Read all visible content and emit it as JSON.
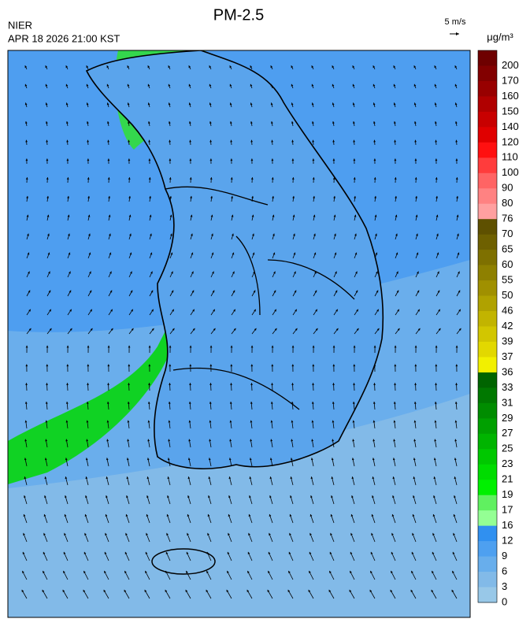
{
  "header": {
    "title": "PM-2.5",
    "agency": "NIER",
    "timestamp": "APR 18 2026 21:00 KST"
  },
  "wind_legend": {
    "label": "5 m/s"
  },
  "colorbar": {
    "unit": "μg/m³",
    "levels": [
      {
        "label": 200,
        "color": "#6e0000"
      },
      {
        "label": 170,
        "color": "#820000"
      },
      {
        "label": 160,
        "color": "#980000"
      },
      {
        "label": 150,
        "color": "#b00000"
      },
      {
        "label": 140,
        "color": "#c80000"
      },
      {
        "label": 120,
        "color": "#e00000"
      },
      {
        "label": 110,
        "color": "#ff1010"
      },
      {
        "label": 100,
        "color": "#ff3c3c"
      },
      {
        "label": 90,
        "color": "#ff6464"
      },
      {
        "label": 80,
        "color": "#ff8282"
      },
      {
        "label": 76,
        "color": "#ffa0a0"
      },
      {
        "label": 70,
        "color": "#5e5000"
      },
      {
        "label": 65,
        "color": "#6e6000"
      },
      {
        "label": 60,
        "color": "#7e7000"
      },
      {
        "label": 55,
        "color": "#8e8000"
      },
      {
        "label": 50,
        "color": "#a09000"
      },
      {
        "label": 46,
        "color": "#b0a200"
      },
      {
        "label": 42,
        "color": "#c2b400"
      },
      {
        "label": 39,
        "color": "#d2c600"
      },
      {
        "label": 37,
        "color": "#e2d800"
      },
      {
        "label": 36,
        "color": "#f2f000"
      },
      {
        "label": 33,
        "color": "#006400"
      },
      {
        "label": 31,
        "color": "#007800"
      },
      {
        "label": 29,
        "color": "#008c00"
      },
      {
        "label": 27,
        "color": "#00a000"
      },
      {
        "label": 25,
        "color": "#00b400"
      },
      {
        "label": 23,
        "color": "#00c800"
      },
      {
        "label": 21,
        "color": "#00dc00"
      },
      {
        "label": 19,
        "color": "#00f000"
      },
      {
        "label": 17,
        "color": "#60f060"
      },
      {
        "label": 16,
        "color": "#94ff94"
      },
      {
        "label": 12,
        "color": "#3090f0"
      },
      {
        "label": 9,
        "color": "#4ea0f0"
      },
      {
        "label": 6,
        "color": "#68aeec"
      },
      {
        "label": 3,
        "color": "#82bae8"
      },
      {
        "label": 0,
        "color": "#98c8e8"
      }
    ]
  }
}
